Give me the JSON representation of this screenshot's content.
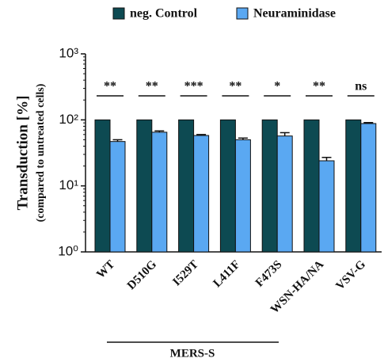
{
  "chart_data": {
    "type": "bar",
    "y_label": "Transduction [%]",
    "y_sublabel": "(compared to untreated cells)",
    "categories": [
      "WT",
      "D510G",
      "I529T",
      "L411F",
      "F473S",
      "WSN-HA/NA",
      "VSV-G"
    ],
    "series": [
      {
        "name": "neg. Control",
        "color": "#0d4a52",
        "values": [
          100,
          100,
          100,
          100,
          100,
          100,
          100
        ]
      },
      {
        "name": "Neuraminidase",
        "color": "#5aa8f2",
        "values": [
          47,
          65,
          58,
          50,
          57,
          24,
          88
        ],
        "errors": [
          3,
          3,
          2,
          3,
          7,
          3,
          3
        ]
      }
    ],
    "significance": [
      "**",
      "**",
      "***",
      "**",
      "*",
      "**",
      "ns"
    ],
    "group_label": "MERS-S",
    "log_scale": true,
    "ylim": [
      1,
      1000
    ],
    "yticks": [
      {
        "value": 1,
        "label": "10⁰"
      },
      {
        "value": 10,
        "label": "10¹"
      },
      {
        "value": 100,
        "label": "10²"
      },
      {
        "value": 1000,
        "label": "10³"
      }
    ]
  }
}
